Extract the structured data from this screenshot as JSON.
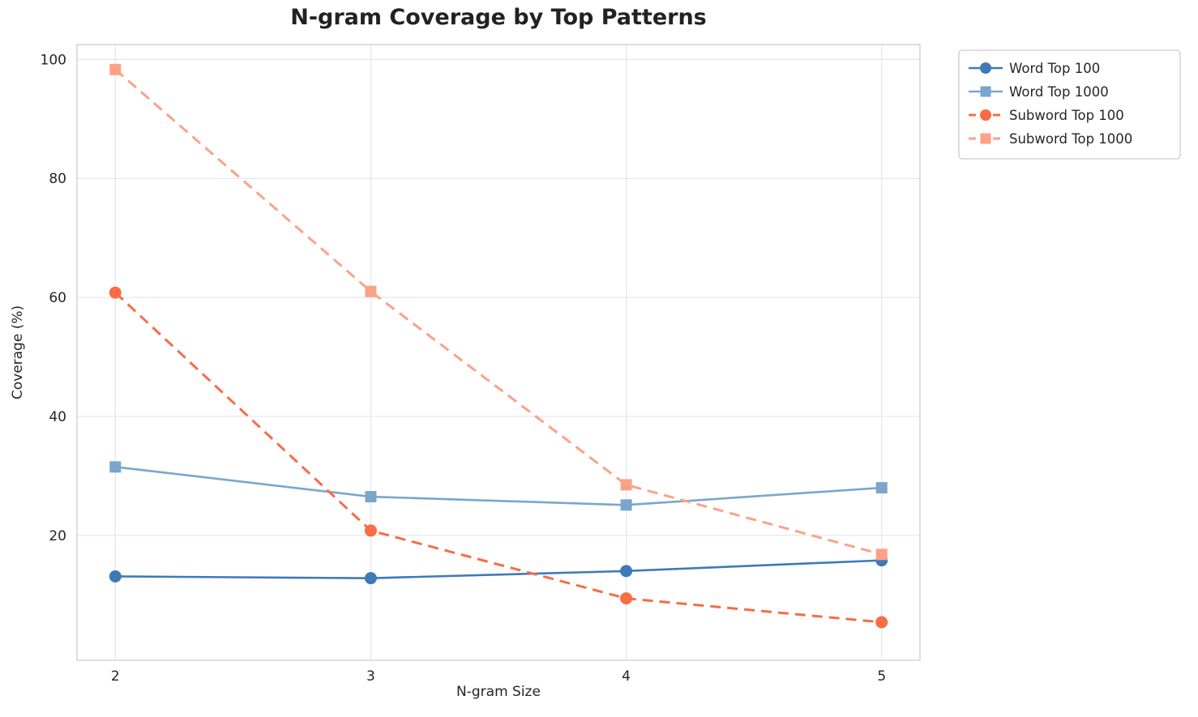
{
  "chart_data": {
    "type": "line",
    "title": "N-gram Coverage by Top Patterns",
    "xlabel": "N-gram Size",
    "ylabel": "Coverage (%)",
    "x": [
      2,
      3,
      4,
      5
    ],
    "xticks": [
      "2",
      "3",
      "4",
      "5"
    ],
    "yticks": [
      20,
      40,
      60,
      80,
      100
    ],
    "xlim": [
      1.85,
      5.15
    ],
    "ylim": [
      -1,
      102.5
    ],
    "grid": true,
    "legend_position": "upper-right-outside",
    "colors": {
      "grid": "#e6e6e6",
      "frame": "#cccccc",
      "text": "#262626",
      "legend_border": "#cccccc",
      "background": "#ffffff"
    },
    "series": [
      {
        "name": "Word Top 100",
        "values": [
          13.1,
          12.8,
          14.0,
          15.8
        ],
        "color": "#3d7ab7",
        "line_style": "solid",
        "marker": "circle"
      },
      {
        "name": "Word Top 1000",
        "values": [
          31.5,
          26.5,
          25.1,
          28.0
        ],
        "color": "#7aa6cd",
        "line_style": "solid",
        "marker": "square"
      },
      {
        "name": "Subword Top 100",
        "values": [
          60.8,
          20.8,
          9.4,
          5.4
        ],
        "color": "#f96c44",
        "line_style": "dashed",
        "marker": "circle"
      },
      {
        "name": "Subword Top 1000",
        "values": [
          98.3,
          61.0,
          28.5,
          16.8
        ],
        "color": "#fba286",
        "line_style": "dashed",
        "marker": "square"
      }
    ]
  }
}
